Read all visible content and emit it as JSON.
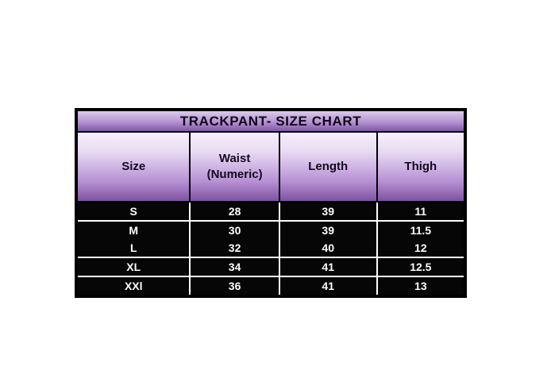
{
  "page": {
    "background_color": "#ffffff"
  },
  "size_chart": {
    "title": "TRACKPANT- SIZE CHART",
    "columns": [
      {
        "label": "Size",
        "sublabel": ""
      },
      {
        "label": "Waist",
        "sublabel": "(Numeric)"
      },
      {
        "label": "Length",
        "sublabel": ""
      },
      {
        "label": "Thigh",
        "sublabel": ""
      }
    ],
    "rows": [
      {
        "size": "S",
        "waist": "28",
        "length": "39",
        "thigh": "11"
      },
      {
        "size": "M",
        "waist": "30",
        "length": "39",
        "thigh": "11.5"
      },
      {
        "size": "L",
        "waist": "32",
        "length": "40",
        "thigh": "12"
      },
      {
        "size": "XL",
        "waist": "34",
        "length": "41",
        "thigh": "12.5"
      },
      {
        "size": "XXl",
        "waist": "36",
        "length": "41",
        "thigh": "13"
      }
    ],
    "colors": {
      "outer_border": "#000000",
      "title_gradient_top": "#dccbec",
      "title_gradient_bottom": "#8156a5",
      "header_gradient_top": "#f6f0fb",
      "header_gradient_bottom": "#7d51a0",
      "data_row_background": "#060606",
      "data_text": "#ffffff",
      "header_text": "#140a1e"
    }
  },
  "chart_data": {
    "type": "table",
    "title": "TRACKPANT- SIZE CHART",
    "columns": [
      "Size",
      "Waist (Numeric)",
      "Length",
      "Thigh"
    ],
    "rows": [
      [
        "S",
        "28",
        "39",
        "11"
      ],
      [
        "M",
        "30",
        "39",
        "11.5"
      ],
      [
        "L",
        "32",
        "40",
        "12"
      ],
      [
        "XL",
        "34",
        "41",
        "12.5"
      ],
      [
        "XXl",
        "36",
        "41",
        "13"
      ]
    ]
  }
}
